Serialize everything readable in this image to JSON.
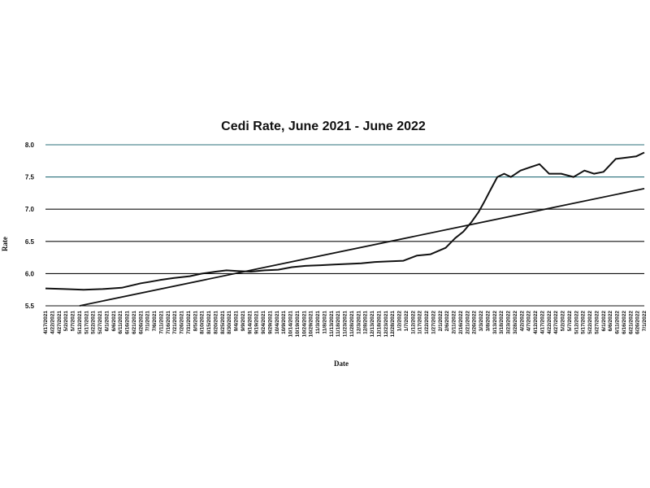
{
  "chart_data": {
    "type": "line",
    "title": "Cedi Rate, June 2021 - June 2022",
    "xlabel": "Date",
    "ylabel": "Rate",
    "ylim": [
      5.5,
      8.0
    ],
    "yticks": [
      "5.5",
      "6.0",
      "6.5",
      "7.0",
      "7.5",
      "8.0"
    ],
    "grid": "horizontal",
    "legend": "none",
    "colors": {
      "line": "#111111",
      "grid_top": "#2a6f7a",
      "grid": "#111111"
    },
    "x_tick_labels": [
      "4/17/2021",
      "4/22/2021",
      "4/27/2021",
      "5/2/2021",
      "5/7/2021",
      "5/12/2021",
      "5/17/2021",
      "5/22/2021",
      "5/27/2021",
      "6/1/2021",
      "6/6/2021",
      "6/11/2021",
      "6/16/2021",
      "6/21/2021",
      "6/26/2021",
      "7/1/2021",
      "7/6/2021",
      "7/11/2021",
      "7/16/2021",
      "7/21/2021",
      "7/26/2021",
      "7/31/2021",
      "8/5/2021",
      "8/10/2021",
      "8/15/2021",
      "8/20/2021",
      "8/25/2021",
      "8/30/2021",
      "9/4/2021",
      "9/9/2021",
      "9/14/2021",
      "9/19/2021",
      "9/24/2021",
      "9/29/2021",
      "10/4/2021",
      "10/9/2021",
      "10/14/2021",
      "10/19/2021",
      "10/24/2021",
      "10/29/2021",
      "11/3/2021",
      "11/8/2021",
      "11/13/2021",
      "11/18/2021",
      "11/23/2021",
      "11/28/2021",
      "12/3/2021",
      "12/8/2021",
      "12/13/2021",
      "12/18/2021",
      "12/23/2021",
      "12/28/2021",
      "1/2/2022",
      "1/7/2022",
      "1/12/2022",
      "1/17/2022",
      "1/22/2022",
      "1/27/2022",
      "2/1/2022",
      "2/6/2022",
      "2/11/2022",
      "2/16/2022",
      "2/21/2022",
      "2/26/2022",
      "3/3/2022",
      "3/8/2022",
      "3/13/2022",
      "3/18/2022",
      "3/23/2022",
      "3/28/2022",
      "4/2/2022",
      "4/7/2022",
      "4/12/2022",
      "4/17/2022",
      "4/22/2022",
      "4/27/2022",
      "5/2/2022",
      "5/7/2022",
      "5/12/2022",
      "5/17/2022",
      "5/22/2022",
      "5/27/2022",
      "6/1/2022",
      "6/6/2022",
      "6/11/2022",
      "6/16/2022",
      "6/21/2022",
      "6/26/2022",
      "7/1/2022"
    ],
    "series": [
      {
        "x": [
          "2021-04-17",
          "2021-05-01",
          "2021-05-15",
          "2021-05-29",
          "2021-06-12",
          "2021-06-20",
          "2021-06-26",
          "2021-07-02",
          "2021-07-10",
          "2021-07-20",
          "2021-08-01",
          "2021-08-10",
          "2021-08-20",
          "2021-08-28",
          "2021-09-05",
          "2021-09-15",
          "2021-09-25",
          "2021-10-05",
          "2021-10-15",
          "2021-10-25",
          "2021-11-05",
          "2021-11-15",
          "2021-11-25",
          "2021-12-05",
          "2021-12-15",
          "2021-12-25",
          "2022-01-05",
          "2022-01-15",
          "2022-01-25",
          "2022-02-05",
          "2022-02-12",
          "2022-02-18",
          "2022-02-24",
          "2022-03-01",
          "2022-03-05",
          "2022-03-10",
          "2022-03-15",
          "2022-03-20",
          "2022-03-25",
          "2022-04-01",
          "2022-04-08",
          "2022-04-15",
          "2022-04-22",
          "2022-05-01",
          "2022-05-10",
          "2022-05-18",
          "2022-05-25",
          "2022-06-01",
          "2022-06-10",
          "2022-06-18",
          "2022-06-25",
          "2022-07-01"
        ],
        "values": [
          5.77,
          5.76,
          5.75,
          5.76,
          5.78,
          5.82,
          5.85,
          5.87,
          5.9,
          5.93,
          5.96,
          6.0,
          6.03,
          6.05,
          6.04,
          6.03,
          6.05,
          6.06,
          6.1,
          6.12,
          6.13,
          6.14,
          6.15,
          6.16,
          6.18,
          6.19,
          6.2,
          6.28,
          6.3,
          6.4,
          6.55,
          6.65,
          6.8,
          6.95,
          7.1,
          7.3,
          7.5,
          7.55,
          7.5,
          7.6,
          7.65,
          7.7,
          7.55,
          7.55,
          7.5,
          7.6,
          7.55,
          7.58,
          7.78,
          7.8,
          7.82,
          7.88
        ]
      },
      {
        "x": [
          "2021-05-12",
          "2022-07-01"
        ],
        "values": [
          5.5,
          7.32
        ]
      }
    ]
  }
}
